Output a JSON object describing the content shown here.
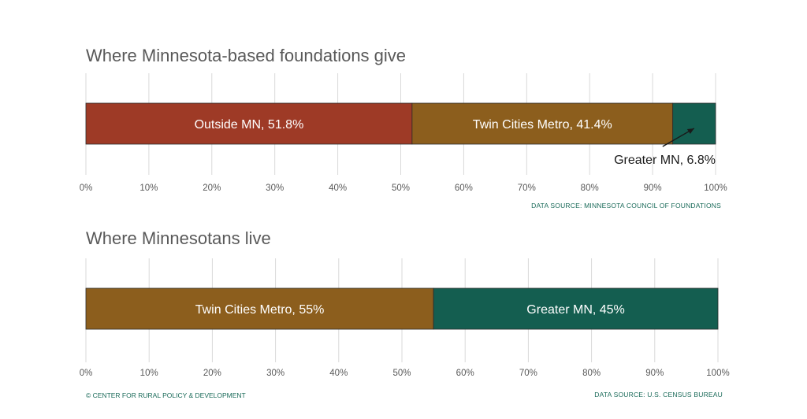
{
  "colors": {
    "outside": "#9e3a26",
    "metro": "#8c5e1d",
    "greater": "#145e50",
    "source_text": "#1b6b5a"
  },
  "chart_data": [
    {
      "type": "bar",
      "orientation": "horizontal-stacked-100",
      "title": "Where Minnesota-based foundations give",
      "segments": [
        {
          "label": "Outside MN, 51.8%",
          "value": 51.8,
          "color": "#9e3a26"
        },
        {
          "label": "Twin Cities Metro, 41.4%",
          "value": 41.4,
          "color": "#8c5e1d"
        },
        {
          "label": "Greater MN, 6.8%",
          "value": 6.8,
          "color": "#145e50"
        }
      ],
      "xlim": [
        0,
        100
      ],
      "xticks": [
        "0%",
        "10%",
        "20%",
        "30%",
        "40%",
        "50%",
        "60%",
        "70%",
        "80%",
        "90%",
        "100%"
      ],
      "grid": true,
      "source": "DATA SOURCE: MINNESOTA COUNCIL OF FOUNDATIONS"
    },
    {
      "type": "bar",
      "orientation": "horizontal-stacked-100",
      "title": "Where Minnesotans live",
      "segments": [
        {
          "label": "Twin Cities Metro, 55%",
          "value": 55,
          "color": "#8c5e1d"
        },
        {
          "label": "Greater MN, 45%",
          "value": 45,
          "color": "#145e50"
        }
      ],
      "xlim": [
        0,
        100
      ],
      "xticks": [
        "0%",
        "10%",
        "20%",
        "30%",
        "40%",
        "50%",
        "60%",
        "70%",
        "80%",
        "90%",
        "100%"
      ],
      "grid": true,
      "source": "DATA SOURCE: U.S. CENSUS BUREAU"
    }
  ],
  "footer": {
    "copyright": "© CENTER FOR RURAL POLICY & DEVELOPMENT"
  }
}
